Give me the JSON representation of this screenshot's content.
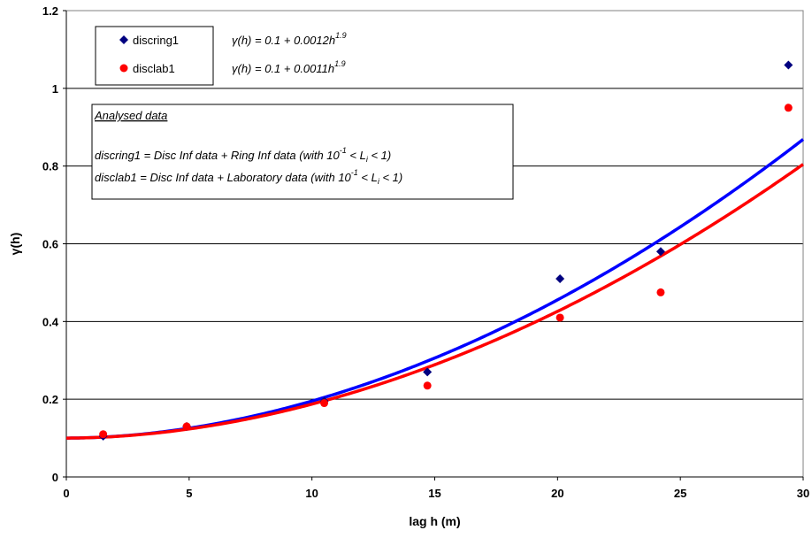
{
  "chart_data": {
    "type": "scatter",
    "title": "",
    "xlabel": "lag h (m)",
    "ylabel": "γ(h)",
    "xlim": [
      0,
      30
    ],
    "ylim": [
      0,
      1.2
    ],
    "x_ticks": [
      0,
      5,
      10,
      15,
      20,
      25,
      30
    ],
    "y_ticks": [
      0,
      0.2,
      0.4,
      0.6,
      0.8,
      1,
      1.2
    ],
    "x_tick_labels": [
      "0",
      "5",
      "10",
      "15",
      "20",
      "25",
      "30"
    ],
    "y_tick_labels": [
      "0",
      "0.2",
      "0.4",
      "0.6",
      "0.8",
      "1",
      "1.2"
    ],
    "grid": "horizontal",
    "legend_placement": "top-left",
    "series": [
      {
        "name": "discring1",
        "marker": "diamond",
        "color": "#000080",
        "x": [
          1.5,
          4.9,
          10.5,
          14.7,
          20.1,
          24.2,
          29.4
        ],
        "y": [
          0.105,
          0.13,
          0.195,
          0.27,
          0.51,
          0.58,
          1.06
        ]
      },
      {
        "name": "disclab1",
        "marker": "circle",
        "color": "#ff0000",
        "x": [
          1.5,
          4.9,
          10.5,
          14.7,
          20.1,
          24.2,
          29.4
        ],
        "y": [
          0.11,
          0.13,
          0.19,
          0.235,
          0.41,
          0.475,
          0.95
        ]
      }
    ],
    "fits": [
      {
        "series": "discring1",
        "color": "#0000ff",
        "a": 0.1,
        "b": 0.0012,
        "c": 1.9
      },
      {
        "series": "disclab1",
        "color": "#ff0000",
        "a": 0.1,
        "b": 0.0011,
        "c": 1.9
      }
    ],
    "equations": [
      {
        "lhs": "γ(h) = 0.1 + 0.0012h",
        "exp": "1.9"
      },
      {
        "lhs": "γ(h) = 0.1 + 0.0011h",
        "exp": "1.9"
      }
    ],
    "annotation": {
      "heading": "Analysed data",
      "line1_pre": "discring1 = Disc Inf data + Ring Inf data (with 10",
      "line2_pre": "disclab1 = Disc Inf data + Laboratory data (with 10",
      "exp": "-1",
      "mid": " < L",
      "sub": "i",
      "post": " < 1)"
    }
  }
}
